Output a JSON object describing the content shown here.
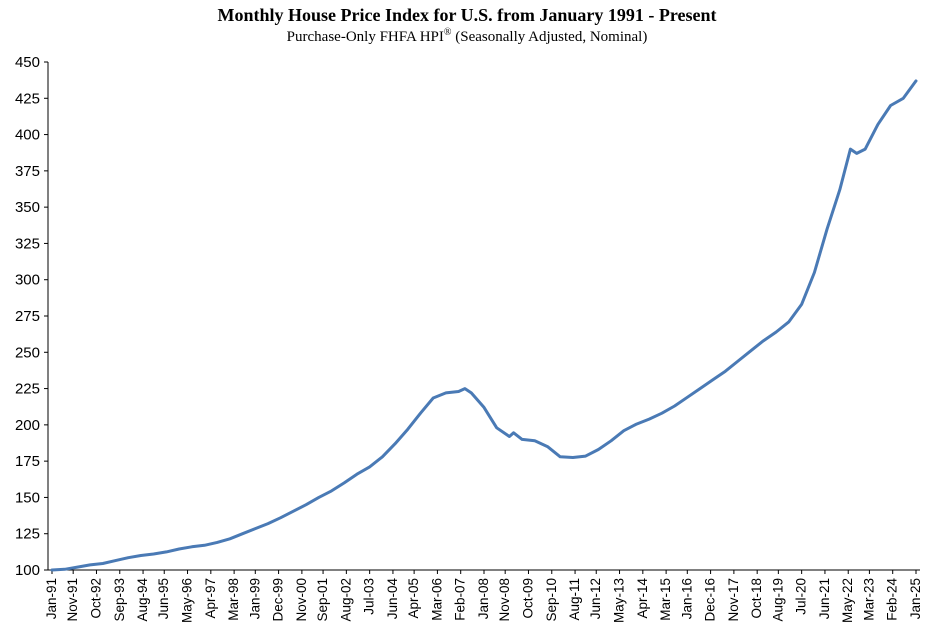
{
  "chart_data": {
    "type": "line",
    "title": "Monthly House Price Index for U.S. from January 1991 - Present",
    "subtitle_main": "Purchase-Only FHFA HPI",
    "subtitle_sup": "®",
    "subtitle_rest": " (Seasonally Adjusted, Nominal)",
    "xlabel": "",
    "ylabel": "",
    "ylim": [
      100,
      450
    ],
    "yticks": [
      100,
      125,
      150,
      175,
      200,
      225,
      250,
      275,
      300,
      325,
      350,
      375,
      400,
      425,
      450
    ],
    "x_tick_labels": [
      "Jan-91",
      "Nov-91",
      "Oct-92",
      "Sep-93",
      "Aug-94",
      "Jun-95",
      "May-96",
      "Apr-97",
      "Mar-98",
      "Jan-99",
      "Dec-99",
      "Nov-00",
      "Sep-01",
      "Aug-02",
      "Jul-03",
      "Jun-04",
      "Apr-05",
      "Mar-06",
      "Feb-07",
      "Jan-08",
      "Nov-08",
      "Oct-09",
      "Sep-10",
      "Aug-11",
      "Jun-12",
      "May-13",
      "Apr-14",
      "Mar-15",
      "Jan-16",
      "Dec-16",
      "Nov-17",
      "Oct-18",
      "Aug-19",
      "Jul-20",
      "Jun-21",
      "May-22",
      "Mar-23",
      "Feb-24",
      "Jan-25"
    ],
    "grid": false,
    "line_color": "#4a7ab5",
    "series": [
      {
        "x": [
          "Jan-91",
          "Jul-91",
          "Jan-92",
          "Jul-92",
          "Jan-93",
          "Jul-93",
          "Jan-94",
          "Jul-94",
          "Jan-95",
          "Jul-95",
          "Jan-96",
          "Jul-96",
          "Jan-97",
          "Jul-97",
          "Jan-98",
          "Jul-98",
          "Jan-99",
          "Jul-99",
          "Jan-00",
          "Jul-00",
          "Jan-01",
          "Jul-01",
          "Jan-02",
          "Jul-02",
          "Jan-03",
          "Jul-03",
          "Jan-04",
          "Jul-04",
          "Jan-05",
          "Jul-05",
          "Jan-06",
          "Jul-06",
          "Jan-07",
          "Apr-07",
          "Jul-07",
          "Jan-08",
          "Jul-08",
          "Jan-09",
          "Mar-09",
          "Jul-09",
          "Jan-10",
          "Jul-10",
          "Jan-11",
          "Jul-11",
          "Jan-12",
          "Jul-12",
          "Jan-13",
          "Jul-13",
          "Jan-14",
          "Jul-14",
          "Jan-15",
          "Jul-15",
          "Jan-16",
          "Jul-16",
          "Jan-17",
          "Jul-17",
          "Jan-18",
          "Jul-18",
          "Jan-19",
          "Jul-19",
          "Jan-20",
          "Jun-20",
          "Jul-20",
          "Jan-21",
          "Jul-21",
          "Jan-22",
          "Jun-22",
          "Sep-22",
          "Jan-23",
          "Jul-23",
          "Jan-24",
          "Jul-24",
          "Jan-25"
        ],
        "values": [
          100.0,
          100.5,
          102.0,
          103.5,
          104.5,
          106.5,
          108.5,
          110.0,
          111.0,
          112.5,
          114.5,
          116.0,
          117.0,
          119.0,
          121.5,
          125.0,
          128.5,
          132.0,
          136.0,
          140.5,
          145.0,
          150.0,
          154.5,
          160.0,
          166.0,
          171.0,
          178.0,
          187.0,
          197.0,
          208.0,
          218.5,
          222.0,
          223.0,
          225.0,
          222.0,
          212.0,
          198.0,
          192.0,
          194.5,
          190.0,
          189.0,
          185.0,
          178.0,
          177.5,
          178.5,
          183.0,
          189.0,
          196.0,
          200.5,
          204.0,
          208.0,
          213.0,
          219.0,
          225.0,
          231.0,
          237.0,
          244.0,
          251.0,
          258.0,
          264.0,
          271.0,
          281.0,
          283.0,
          305.0,
          335.0,
          362.0,
          390.0,
          387.0,
          390.0,
          407.0,
          420.0,
          425.0,
          437.0
        ]
      }
    ]
  }
}
